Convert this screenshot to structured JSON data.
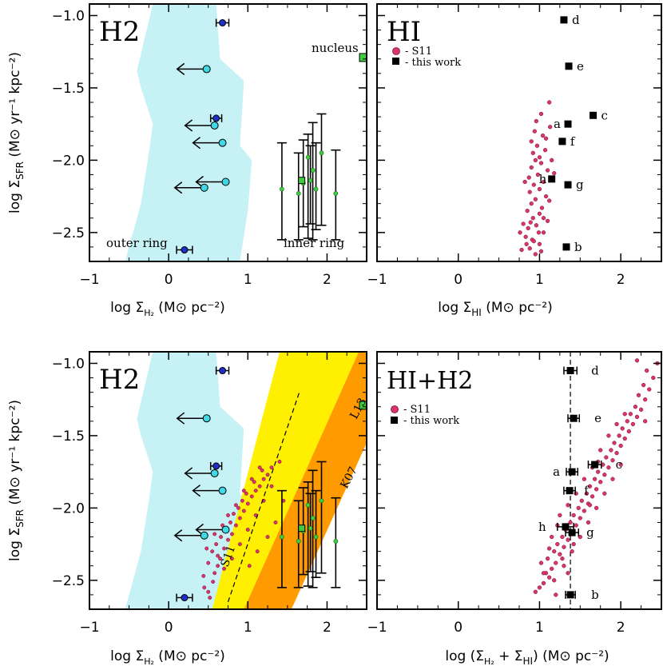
{
  "colors": {
    "shade_cyan": "#c6f2f6",
    "light_cyan_point": "#40d8e4",
    "dark_blue_point": "#1e2fc8",
    "green_point": "#40cc40",
    "s11_point": "#d8356f",
    "yellow_band": "#ffef00",
    "orange_band": "#ff9a00"
  },
  "chart_data": [
    {
      "id": "h2",
      "type": "scatter",
      "title": "H2",
      "xlabel": "log Σ_H₂ (M⊙ pc⁻²)",
      "ylabel": "log Σ_SFR (M⊙ yr⁻¹ kpc⁻²)",
      "xlim": [
        -1,
        2.5
      ],
      "ylim": [
        -2.7,
        -0.92
      ],
      "xticks": [
        "−1",
        "0",
        "1",
        "2"
      ],
      "yticks": [
        "−1.0",
        "−1.5",
        "−2.0",
        "−2.5"
      ],
      "annotations": [
        "nucleus",
        "outer ring",
        "inner ring"
      ],
      "shade": [
        [
          -0.2,
          -0.92
        ],
        [
          0.6,
          -0.92
        ],
        [
          0.65,
          -1.3
        ],
        [
          0.95,
          -1.45
        ],
        [
          0.9,
          -1.9
        ],
        [
          1.05,
          -2.0
        ],
        [
          1.0,
          -2.35
        ],
        [
          0.9,
          -2.7
        ],
        [
          -0.55,
          -2.7
        ],
        [
          -0.35,
          -2.3
        ],
        [
          -0.25,
          -1.95
        ],
        [
          -0.2,
          -1.75
        ],
        [
          -0.35,
          -1.5
        ],
        [
          -0.4,
          -1.38
        ]
      ],
      "upper_limits": [
        {
          "x": 0.48,
          "y": -1.37
        },
        {
          "x": 0.58,
          "y": -1.76
        },
        {
          "x": 0.68,
          "y": -1.88
        },
        {
          "x": 0.72,
          "y": -2.15
        },
        {
          "x": 0.45,
          "y": -2.19
        }
      ],
      "dark_points": [
        {
          "x": 0.68,
          "y": -1.05,
          "xerr": 0.08
        },
        {
          "x": 0.6,
          "y": -1.71,
          "xerr": 0.07
        },
        {
          "x": 0.2,
          "y": -2.62,
          "xerr": 0.1
        }
      ],
      "nucleus": {
        "x": 2.46,
        "y": -1.29
      },
      "inner_ring": [
        {
          "x": 1.43,
          "y": -2.2,
          "lo": -2.55,
          "hi": -1.88
        },
        {
          "x": 1.64,
          "y": -2.23,
          "lo": -2.55,
          "hi": -1.95
        },
        {
          "x": 1.7,
          "y": -2.16,
          "lo": -2.46,
          "hi": -1.86
        },
        {
          "x": 1.76,
          "y": -1.98,
          "lo": -2.54,
          "hi": -1.82
        },
        {
          "x": 1.82,
          "y": -2.07,
          "lo": -2.55,
          "hi": -1.74
        },
        {
          "x": 1.86,
          "y": -2.2,
          "lo": -2.48,
          "hi": -1.88
        },
        {
          "x": 1.93,
          "y": -1.95,
          "lo": -2.45,
          "hi": -1.68
        },
        {
          "x": 2.11,
          "y": -2.23,
          "lo": -2.55,
          "hi": -1.93
        },
        {
          "x": 1.79,
          "y": -2.14,
          "lo": -2.44,
          "hi": -1.9
        }
      ],
      "inner_ring_square": {
        "x": 1.68,
        "y": -2.14
      }
    },
    {
      "id": "hi",
      "type": "scatter",
      "title": "HI",
      "xlabel": "log Σ_HI (M⊙ pc⁻²)",
      "ylabel": "",
      "xlim": [
        -1,
        2.5
      ],
      "ylim": [
        -2.7,
        -0.92
      ],
      "xticks": [
        "−1",
        "0",
        "1",
        "2"
      ],
      "legend": [
        "- S11",
        "- this work"
      ],
      "legend_position": "top-left",
      "this_work": [
        {
          "label": "d",
          "x": 1.3,
          "y": -1.03
        },
        {
          "label": "e",
          "x": 1.36,
          "y": -1.35
        },
        {
          "label": "c",
          "x": 1.66,
          "y": -1.69
        },
        {
          "label": "a",
          "x": 1.35,
          "y": -1.75
        },
        {
          "label": "f",
          "x": 1.28,
          "y": -1.87
        },
        {
          "label": "h",
          "x": 1.15,
          "y": -2.13
        },
        {
          "label": "g",
          "x": 1.35,
          "y": -2.17
        },
        {
          "label": "b",
          "x": 1.33,
          "y": -2.6
        }
      ],
      "s11": [
        [
          0.88,
          -2.61
        ],
        [
          0.95,
          -2.65
        ],
        [
          0.78,
          -2.62
        ],
        [
          1.0,
          -2.58
        ],
        [
          0.91,
          -2.55
        ],
        [
          0.83,
          -2.53
        ],
        [
          1.05,
          -2.5
        ],
        [
          0.86,
          -2.47
        ],
        [
          0.96,
          -2.45
        ],
        [
          0.8,
          -2.44
        ],
        [
          1.1,
          -2.42
        ],
        [
          0.92,
          -2.4
        ],
        [
          1.0,
          -2.37
        ],
        [
          0.85,
          -2.35
        ],
        [
          1.03,
          -2.33
        ],
        [
          0.9,
          -2.3
        ],
        [
          0.95,
          -2.27
        ],
        [
          1.08,
          -2.25
        ],
        [
          0.88,
          -2.22
        ],
        [
          1.0,
          -2.2
        ],
        [
          0.93,
          -2.17
        ],
        [
          1.05,
          -2.15
        ],
        [
          0.87,
          -2.12
        ],
        [
          0.98,
          -2.1
        ],
        [
          1.1,
          -2.07
        ],
        [
          0.9,
          -2.05
        ],
        [
          1.02,
          -2.02
        ],
        [
          0.95,
          -2.0
        ],
        [
          0.92,
          -1.95
        ],
        [
          1.07,
          -1.93
        ],
        [
          0.97,
          -1.9
        ],
        [
          0.9,
          -1.87
        ],
        [
          1.04,
          -1.83
        ],
        [
          0.94,
          -1.8
        ],
        [
          1.13,
          -1.77
        ],
        [
          0.96,
          -1.73
        ],
        [
          1.02,
          -1.68
        ],
        [
          1.12,
          -1.6
        ],
        [
          0.93,
          -2.56
        ],
        [
          1.02,
          -2.63
        ],
        [
          0.84,
          -2.58
        ],
        [
          0.99,
          -2.5
        ],
        [
          1.12,
          -2.28
        ],
        [
          1.15,
          -2.0
        ],
        [
          0.82,
          -2.15
        ],
        [
          0.89,
          -2.43
        ],
        [
          1.0,
          -1.98
        ],
        [
          1.08,
          -1.85
        ],
        [
          1.18,
          -2.09
        ],
        [
          0.76,
          -2.5
        ],
        [
          1.05,
          -2.4
        ]
      ]
    },
    {
      "id": "h2b",
      "type": "scatter",
      "title": "H2",
      "xlabel": "log Σ_H₂ (M⊙ pc⁻²)",
      "ylabel": "log Σ_SFR (M⊙ yr⁻¹ kpc⁻²)",
      "xlim": [
        -1,
        2.5
      ],
      "ylim": [
        -2.7,
        -0.92
      ],
      "xticks": [
        "−1",
        "0",
        "1",
        "2"
      ],
      "yticks": [
        "−1.0",
        "−1.5",
        "−2.0",
        "−2.5"
      ],
      "band_labels": [
        "L13",
        "K07",
        "S11"
      ],
      "orange_band": [
        [
          0.95,
          -2.7
        ],
        [
          2.4,
          -0.92
        ],
        [
          2.5,
          -0.92
        ],
        [
          2.5,
          -1.55
        ],
        [
          1.55,
          -2.7
        ]
      ],
      "yellow_band": [
        [
          0.55,
          -2.7
        ],
        [
          1.4,
          -0.92
        ],
        [
          2.4,
          -0.92
        ],
        [
          0.95,
          -2.7
        ]
      ],
      "s11_line": [
        [
          0.75,
          -2.65
        ],
        [
          1.65,
          -1.2
        ]
      ],
      "s11": [
        [
          0.5,
          -2.58
        ],
        [
          0.56,
          -2.51
        ],
        [
          0.44,
          -2.47
        ],
        [
          0.58,
          -2.45
        ],
        [
          0.62,
          -2.4
        ],
        [
          0.5,
          -2.38
        ],
        [
          0.65,
          -2.35
        ],
        [
          0.55,
          -2.3
        ],
        [
          0.7,
          -2.28
        ],
        [
          0.6,
          -2.25
        ],
        [
          0.75,
          -2.22
        ],
        [
          0.66,
          -2.2
        ],
        [
          0.8,
          -2.18
        ],
        [
          0.72,
          -2.15
        ],
        [
          0.85,
          -2.12
        ],
        [
          0.78,
          -2.1
        ],
        [
          0.9,
          -2.07
        ],
        [
          0.82,
          -2.04
        ],
        [
          0.95,
          -2.02
        ],
        [
          0.88,
          -2.0
        ],
        [
          1.0,
          -1.97
        ],
        [
          0.93,
          -1.95
        ],
        [
          1.05,
          -1.92
        ],
        [
          0.98,
          -1.9
        ],
        [
          1.1,
          -1.88
        ],
        [
          1.15,
          -1.85
        ],
        [
          1.08,
          -1.82
        ],
        [
          1.2,
          -1.8
        ],
        [
          1.25,
          -1.77
        ],
        [
          1.18,
          -1.74
        ],
        [
          1.3,
          -1.72
        ],
        [
          1.4,
          -1.68
        ],
        [
          0.45,
          -2.55
        ],
        [
          0.52,
          -2.62
        ],
        [
          0.62,
          -2.33
        ],
        [
          0.7,
          -2.42
        ],
        [
          0.8,
          -2.35
        ],
        [
          0.9,
          -2.25
        ],
        [
          1.0,
          -2.15
        ],
        [
          1.1,
          -2.05
        ],
        [
          1.2,
          -1.95
        ],
        [
          1.3,
          -1.85
        ],
        [
          0.68,
          -2.12
        ],
        [
          0.75,
          -2.05
        ],
        [
          0.85,
          -1.98
        ],
        [
          0.95,
          -1.88
        ],
        [
          1.05,
          -1.8
        ],
        [
          1.15,
          -1.72
        ],
        [
          0.58,
          -2.18
        ],
        [
          0.48,
          -2.28
        ],
        [
          1.35,
          -2.1
        ],
        [
          1.25,
          -2.2
        ],
        [
          1.45,
          -1.95
        ],
        [
          1.12,
          -2.3
        ],
        [
          1.02,
          -2.4
        ]
      ],
      "upper_limits": [
        {
          "x": 0.48,
          "y": -1.38
        },
        {
          "x": 0.58,
          "y": -1.76
        },
        {
          "x": 0.68,
          "y": -1.88
        },
        {
          "x": 0.72,
          "y": -2.15
        },
        {
          "x": 0.45,
          "y": -2.19
        }
      ],
      "dark_points": [
        {
          "x": 0.68,
          "y": -1.05,
          "xerr": 0.08
        },
        {
          "x": 0.6,
          "y": -1.71,
          "xerr": 0.07
        },
        {
          "x": 0.2,
          "y": -2.62,
          "xerr": 0.1
        }
      ],
      "nucleus": {
        "x": 2.46,
        "y": -1.29
      },
      "inner_ring": [
        {
          "x": 1.43,
          "y": -2.2,
          "lo": -2.55,
          "hi": -1.88
        },
        {
          "x": 1.64,
          "y": -2.23,
          "lo": -2.55,
          "hi": -1.95
        },
        {
          "x": 1.7,
          "y": -2.16,
          "lo": -2.46,
          "hi": -1.86
        },
        {
          "x": 1.76,
          "y": -1.98,
          "lo": -2.54,
          "hi": -1.82
        },
        {
          "x": 1.82,
          "y": -2.07,
          "lo": -2.55,
          "hi": -1.74
        },
        {
          "x": 1.86,
          "y": -2.2,
          "lo": -2.48,
          "hi": -1.88
        },
        {
          "x": 1.93,
          "y": -1.95,
          "lo": -2.45,
          "hi": -1.68
        },
        {
          "x": 2.11,
          "y": -2.23,
          "lo": -2.55,
          "hi": -1.93
        },
        {
          "x": 1.79,
          "y": -2.14,
          "lo": -2.44,
          "hi": -1.9
        }
      ],
      "inner_ring_square": {
        "x": 1.68,
        "y": -2.14
      }
    },
    {
      "id": "hih2",
      "type": "scatter",
      "title": "HI+H2",
      "xlabel": "log (Σ_H₂ + Σ_HI) (M⊙ pc⁻²)",
      "ylabel": "",
      "xlim": [
        -1,
        2.5
      ],
      "ylim": [
        -2.7,
        -0.92
      ],
      "xticks": [
        "−1",
        "0",
        "1",
        "2"
      ],
      "legend": [
        "- S11",
        "- this work"
      ],
      "legend_position": "top-left",
      "vline_x": 1.38,
      "this_work": [
        {
          "label": "d",
          "x": 1.38,
          "y": -1.05,
          "xerr": 0.08
        },
        {
          "label": "e",
          "x": 1.42,
          "y": -1.38,
          "xerr": 0.07
        },
        {
          "label": "c",
          "x": 1.68,
          "y": -1.7,
          "xerr": 0.08
        },
        {
          "label": "a",
          "x": 1.4,
          "y": -1.75,
          "xerr": 0.07
        },
        {
          "label": "f",
          "x": 1.37,
          "y": -1.88,
          "xerr": 0.07
        },
        {
          "label": "h",
          "x": 1.32,
          "y": -2.13,
          "xerr": 0.1
        },
        {
          "label": "g",
          "x": 1.4,
          "y": -2.17,
          "xerr": 0.08
        },
        {
          "label": "b",
          "x": 1.38,
          "y": -2.6,
          "xerr": 0.06
        }
      ],
      "s11": [
        [
          0.95,
          -2.58
        ],
        [
          1.05,
          -2.52
        ],
        [
          1.0,
          -2.55
        ],
        [
          1.12,
          -2.48
        ],
        [
          1.08,
          -2.45
        ],
        [
          1.15,
          -2.42
        ],
        [
          1.2,
          -2.38
        ],
        [
          1.1,
          -2.35
        ],
        [
          1.25,
          -2.32
        ],
        [
          1.18,
          -2.3
        ],
        [
          1.3,
          -2.27
        ],
        [
          1.22,
          -2.25
        ],
        [
          1.35,
          -2.22
        ],
        [
          1.28,
          -2.2
        ],
        [
          1.4,
          -2.18
        ],
        [
          1.32,
          -2.15
        ],
        [
          1.45,
          -2.12
        ],
        [
          1.38,
          -2.1
        ],
        [
          1.5,
          -2.07
        ],
        [
          1.42,
          -2.05
        ],
        [
          1.55,
          -2.02
        ],
        [
          1.48,
          -2.0
        ],
        [
          1.6,
          -1.97
        ],
        [
          1.52,
          -1.95
        ],
        [
          1.65,
          -1.92
        ],
        [
          1.58,
          -1.9
        ],
        [
          1.7,
          -1.87
        ],
        [
          1.62,
          -1.85
        ],
        [
          1.75,
          -1.82
        ],
        [
          1.68,
          -1.8
        ],
        [
          1.8,
          -1.77
        ],
        [
          1.72,
          -1.75
        ],
        [
          1.85,
          -1.72
        ],
        [
          1.78,
          -1.7
        ],
        [
          1.9,
          -1.67
        ],
        [
          1.82,
          -1.65
        ],
        [
          1.95,
          -1.62
        ],
        [
          1.88,
          -1.6
        ],
        [
          2.0,
          -1.57
        ],
        [
          1.92,
          -1.55
        ],
        [
          2.05,
          -1.52
        ],
        [
          1.98,
          -1.5
        ],
        [
          2.1,
          -1.47
        ],
        [
          2.02,
          -1.45
        ],
        [
          2.15,
          -1.42
        ],
        [
          2.08,
          -1.4
        ],
        [
          2.2,
          -1.37
        ],
        [
          2.12,
          -1.35
        ],
        [
          2.25,
          -1.32
        ],
        [
          2.18,
          -1.3
        ],
        [
          2.3,
          -1.25
        ],
        [
          2.22,
          -1.22
        ],
        [
          2.35,
          -1.18
        ],
        [
          2.28,
          -1.15
        ],
        [
          2.4,
          -1.1
        ],
        [
          2.32,
          -1.05
        ],
        [
          2.45,
          -1.0
        ],
        [
          2.2,
          -0.98
        ],
        [
          1.05,
          -2.45
        ],
        [
          1.2,
          -2.6
        ],
        [
          1.15,
          -2.2
        ],
        [
          1.25,
          -2.05
        ],
        [
          1.35,
          -1.98
        ],
        [
          1.45,
          -1.9
        ],
        [
          1.55,
          -1.8
        ],
        [
          1.65,
          -1.72
        ],
        [
          1.75,
          -1.6
        ],
        [
          1.85,
          -1.5
        ],
        [
          1.95,
          -1.42
        ],
        [
          1.3,
          -2.4
        ],
        [
          1.4,
          -2.3
        ],
        [
          1.5,
          -2.2
        ],
        [
          1.6,
          -2.1
        ],
        [
          1.7,
          -2.0
        ],
        [
          1.8,
          -1.9
        ],
        [
          1.9,
          -1.8
        ],
        [
          2.0,
          -1.7
        ],
        [
          1.22,
          -2.12
        ],
        [
          1.28,
          -2.35
        ],
        [
          1.02,
          -2.38
        ],
        [
          1.12,
          -2.28
        ],
        [
          1.42,
          -2.25
        ],
        [
          1.62,
          -1.98
        ],
        [
          1.72,
          -1.68
        ],
        [
          2.05,
          -1.35
        ],
        [
          2.3,
          -1.4
        ],
        [
          1.35,
          -2.45
        ],
        [
          1.18,
          -2.5
        ]
      ]
    }
  ]
}
